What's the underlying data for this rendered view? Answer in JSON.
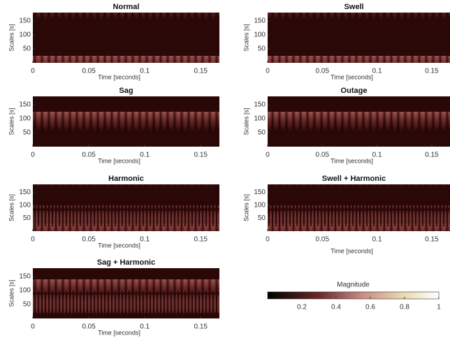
{
  "chart_data": [
    {
      "type": "scalogram",
      "title": "Normal",
      "xlabel": "Time [seconds]",
      "ylabel": "Scales [s]",
      "xlim": [
        0,
        0.1667
      ],
      "ylim": [
        0,
        180
      ],
      "xticks": [
        0,
        0.05,
        0.1,
        0.15
      ],
      "yticks": [
        50,
        100,
        150
      ]
    },
    {
      "type": "scalogram",
      "title": "Swell",
      "xlabel": "Time [seconds]",
      "ylabel": "Scales [s]",
      "xlim": [
        0,
        0.1667
      ],
      "ylim": [
        0,
        180
      ],
      "xticks": [
        0,
        0.05,
        0.1,
        0.15
      ],
      "yticks": [
        50,
        100,
        150
      ]
    },
    {
      "type": "scalogram",
      "title": "Sag",
      "xlabel": "Time [seconds]",
      "ylabel": "Scales [s]",
      "xlim": [
        0,
        0.1667
      ],
      "ylim": [
        0,
        180
      ],
      "xticks": [
        0,
        0.05,
        0.1,
        0.15
      ],
      "yticks": [
        50,
        100,
        150
      ]
    },
    {
      "type": "scalogram",
      "title": "Outage",
      "xlabel": "Time [seconds]",
      "ylabel": "Scales [s]",
      "xlim": [
        0,
        0.1667
      ],
      "ylim": [
        0,
        180
      ],
      "xticks": [
        0,
        0.05,
        0.1,
        0.15
      ],
      "yticks": [
        50,
        100,
        150
      ]
    },
    {
      "type": "scalogram",
      "title": "Harmonic",
      "xlabel": "Time [seconds]",
      "ylabel": "Scales [s]",
      "xlim": [
        0,
        0.1667
      ],
      "ylim": [
        0,
        180
      ],
      "xticks": [
        0,
        0.05,
        0.1,
        0.15
      ],
      "yticks": [
        50,
        100,
        150
      ]
    },
    {
      "type": "scalogram",
      "title": "Swell + Harmonic",
      "xlabel": "Time [seconds]",
      "ylabel": "Scales [s]",
      "xlim": [
        0,
        0.1667
      ],
      "ylim": [
        0,
        180
      ],
      "xticks": [
        0,
        0.05,
        0.1,
        0.15
      ],
      "yticks": [
        50,
        100,
        150
      ]
    },
    {
      "type": "scalogram",
      "title": "Sag + Harmonic",
      "xlabel": "Time [seconds]",
      "ylabel": "Scales [s]",
      "xlim": [
        0,
        0.1667
      ],
      "ylim": [
        0,
        180
      ],
      "xticks": [
        0,
        0.05,
        0.1,
        0.15
      ],
      "yticks": [
        50,
        100,
        150
      ]
    },
    {
      "type": "colorbar",
      "label": "Magnitude",
      "xlim": [
        0,
        1
      ],
      "xticks": [
        0.2,
        0.4,
        0.6,
        0.8,
        1
      ]
    }
  ]
}
